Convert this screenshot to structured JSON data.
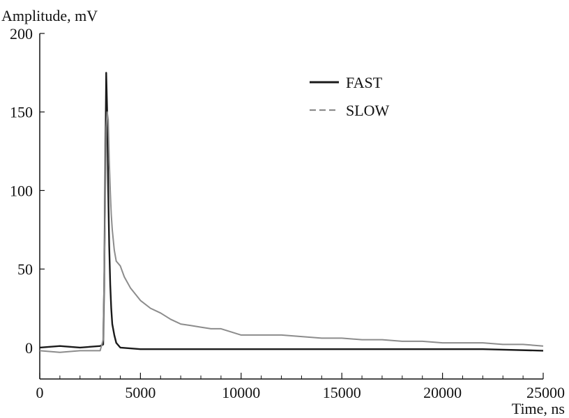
{
  "chart_data": {
    "type": "line",
    "title": "",
    "xlabel": "Time, ns",
    "ylabel": "Amplitude, mV",
    "xlim": [
      0,
      25000
    ],
    "ylim": [
      -20,
      200
    ],
    "x_ticks": [
      0,
      5000,
      10000,
      15000,
      20000,
      25000
    ],
    "x_tick_labels": [
      "0",
      "5000",
      "10000",
      "15000",
      "20000",
      "25000"
    ],
    "x_minor_step": 1000,
    "y_ticks": [
      0,
      50,
      100,
      150,
      200
    ],
    "y_tick_labels": [
      "0",
      "50",
      "100",
      "150",
      "200"
    ],
    "grid": false,
    "legend": "top-right",
    "series": [
      {
        "name": "FAST",
        "style": "solid",
        "color": "#1a1a1a",
        "x": [
          0,
          1000,
          2000,
          3000,
          3150,
          3200,
          3250,
          3300,
          3350,
          3400,
          3450,
          3500,
          3550,
          3600,
          3700,
          3800,
          4000,
          5000,
          6000,
          8000,
          10000,
          12000,
          15000,
          18000,
          20000,
          22000,
          25000
        ],
        "y": [
          0,
          1,
          0,
          1,
          2,
          40,
          110,
          175,
          150,
          100,
          65,
          40,
          25,
          15,
          8,
          3,
          0,
          -1,
          -1,
          -1,
          -1,
          -1,
          -1,
          -1,
          -1,
          -1,
          -2
        ]
      },
      {
        "name": "SLOW",
        "style": "dashed",
        "color": "#8c8c8c",
        "x": [
          0,
          1000,
          2000,
          3000,
          3150,
          3250,
          3300,
          3350,
          3400,
          3450,
          3500,
          3550,
          3600,
          3700,
          3800,
          4000,
          4200,
          4500,
          5000,
          5500,
          6000,
          6500,
          7000,
          7500,
          8000,
          8500,
          9000,
          9500,
          10000,
          11000,
          12000,
          13000,
          14000,
          15000,
          16000,
          17000,
          18000,
          19000,
          20000,
          21000,
          22000,
          23000,
          24000,
          25000
        ],
        "y": [
          -2,
          -3,
          -2,
          -2,
          5,
          90,
          140,
          150,
          145,
          120,
          100,
          85,
          75,
          62,
          55,
          52,
          45,
          38,
          30,
          25,
          22,
          18,
          15,
          14,
          13,
          12,
          12,
          10,
          8,
          8,
          8,
          7,
          6,
          6,
          5,
          5,
          4,
          4,
          3,
          3,
          3,
          2,
          2,
          1
        ]
      }
    ]
  }
}
